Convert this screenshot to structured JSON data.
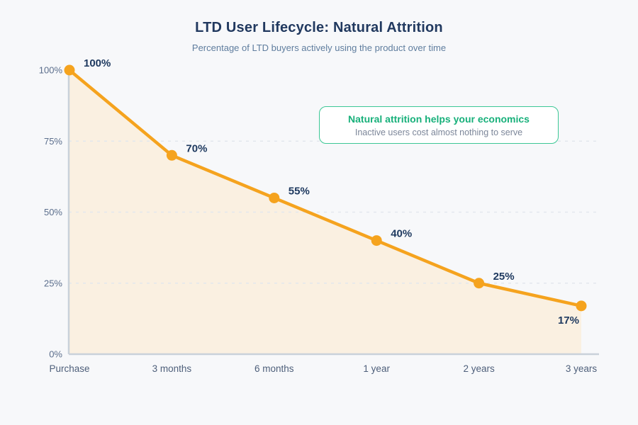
{
  "page": {
    "background": "#f7f8fa"
  },
  "header": {
    "title": "LTD User Lifecycle: Natural Attrition",
    "subtitle": "Percentage of LTD buyers actively using the product over time"
  },
  "callout": {
    "title": "Natural attrition helps your economics",
    "subtitle": "Inactive users cost almost nothing to serve",
    "border_color": "#3cc795",
    "title_color": "#17b07a"
  },
  "chart_data": {
    "type": "area",
    "title": "LTD User Lifecycle: Natural Attrition",
    "subtitle": "Percentage of LTD buyers actively using the product over time",
    "categories": [
      "Purchase",
      "3 months",
      "6 months",
      "1 year",
      "2 years",
      "3 years"
    ],
    "values": [
      100,
      70,
      55,
      40,
      25,
      17
    ],
    "point_labels": [
      "100%",
      "70%",
      "55%",
      "40%",
      "25%",
      "17%"
    ],
    "xlabel": "",
    "ylabel": "",
    "ylim": [
      0,
      100
    ],
    "y_ticks": [
      {
        "value": 0,
        "label": "0%"
      },
      {
        "value": 25,
        "label": "25%"
      },
      {
        "value": 50,
        "label": "50%"
      },
      {
        "value": 75,
        "label": "75%"
      },
      {
        "value": 100,
        "label": "100%"
      }
    ],
    "gridline_values": [
      25,
      50,
      75
    ],
    "grid": "dashed",
    "legend": "none",
    "last_label_position": "below-left",
    "colors": {
      "line": "#f5a31e",
      "area": "#faf0e1",
      "point": "#f5a31e",
      "point_label": "#1f3a60",
      "axis": "#c9d1da",
      "grid": "#e3e7ed",
      "y_tick_text": "#5b6e8c",
      "x_tick_text": "#4e5f7a"
    }
  }
}
